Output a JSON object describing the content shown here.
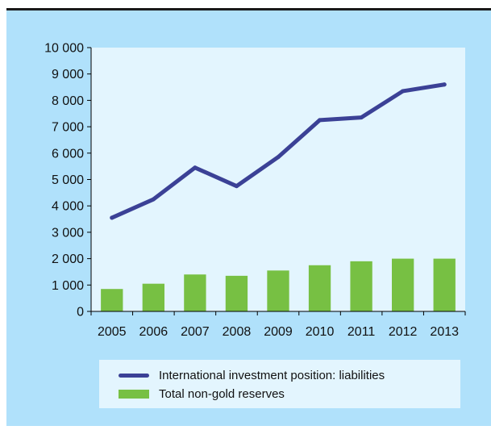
{
  "colors": {
    "panel": "#b0e1fb",
    "plot_area": "#e3f5fe",
    "line": "#3b4196",
    "bars": "#77c043"
  },
  "chart_data": {
    "type": "bar",
    "categories": [
      "2005",
      "2006",
      "2007",
      "2008",
      "2009",
      "2010",
      "2011",
      "2012",
      "2013"
    ],
    "ylim": [
      0,
      10000
    ],
    "y_ticks": [
      {
        "value": 0,
        "label": "0"
      },
      {
        "value": 1000,
        "label": "1 000"
      },
      {
        "value": 2000,
        "label": "2 000"
      },
      {
        "value": 3000,
        "label": "3 000"
      },
      {
        "value": 4000,
        "label": "4 000"
      },
      {
        "value": 5000,
        "label": "5 000"
      },
      {
        "value": 6000,
        "label": "6 000"
      },
      {
        "value": 7000,
        "label": "7 000"
      },
      {
        "value": 8000,
        "label": "8 000"
      },
      {
        "value": 9000,
        "label": "9 000"
      },
      {
        "value": 10000,
        "label": "10 000"
      }
    ],
    "grid": false,
    "legend_position": "bottom",
    "series": [
      {
        "name": "International investment position: liabilities",
        "type": "line",
        "color": "#3b4196",
        "values": [
          3550,
          4250,
          5450,
          4750,
          5850,
          7250,
          7350,
          8350,
          8600
        ]
      },
      {
        "name": "Total non-gold reserves",
        "type": "bar",
        "color": "#77c043",
        "values": [
          850,
          1050,
          1400,
          1350,
          1550,
          1750,
          1900,
          2000,
          2000
        ]
      }
    ]
  }
}
